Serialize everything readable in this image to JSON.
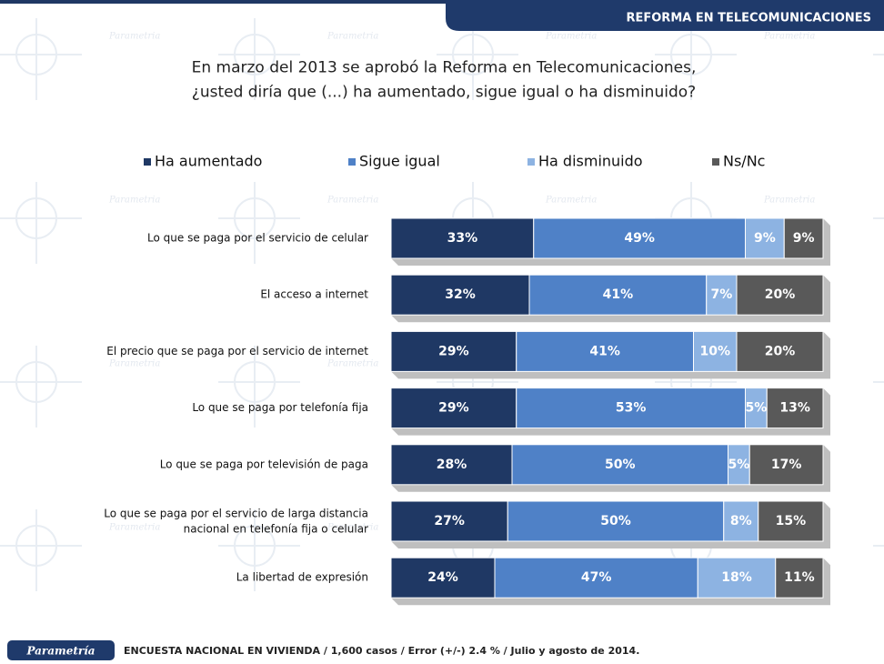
{
  "header": {
    "section": "REFORMA  EN TELECOMUNICACIONES"
  },
  "chart_data": {
    "type": "stacked-bar-horizontal",
    "title": "En marzo del 2013 se aprobó la Reforma en Telecomunicaciones,\n¿usted diría que  (...) ha aumentado, sigue igual o ha disminuido?",
    "categories": [
      "Lo que se paga por el servicio de celular",
      "El acceso a internet",
      "El precio que se paga por el servicio de internet",
      "Lo que se paga por telefonía fija",
      "Lo que se paga por televisión de paga",
      "Lo que se paga por el servicio de larga distancia\nnacional en telefonía fija o celular",
      "La libertad de expresión"
    ],
    "series": [
      {
        "name": "Ha aumentado",
        "color": "#1f3864",
        "values": [
          33,
          32,
          29,
          29,
          28,
          27,
          24
        ],
        "value_labels": [
          "33%",
          "32%",
          "29%",
          "29%",
          "28%",
          "27%",
          "24%"
        ]
      },
      {
        "name": "Sigue igual",
        "color": "#4f81c7",
        "values": [
          49,
          41,
          41,
          53,
          50,
          50,
          47
        ],
        "value_labels": [
          "49%",
          "41%",
          "41%",
          "53%",
          "50%",
          "50%",
          "47%"
        ]
      },
      {
        "name": "Ha disminuido",
        "color": "#8db3e2",
        "values": [
          9,
          7,
          10,
          5,
          5,
          8,
          18
        ],
        "value_labels": [
          "9%",
          "7%",
          "10%",
          "5%",
          "5%",
          "8%",
          "18%"
        ]
      },
      {
        "name": "Ns/Nc",
        "color": "#595959",
        "values": [
          9,
          20,
          20,
          13,
          17,
          15,
          11
        ],
        "value_labels": [
          "9%",
          "20%",
          "20%",
          "13%",
          "17%",
          "15%",
          "11%"
        ]
      }
    ],
    "legend": "top"
  },
  "footer": {
    "brand": "Parametría",
    "note": "ENCUESTA NACIONAL EN VIVIENDA / 1,600 casos / Error (+/-) 2.4 % / Julio y agosto de 2014."
  }
}
